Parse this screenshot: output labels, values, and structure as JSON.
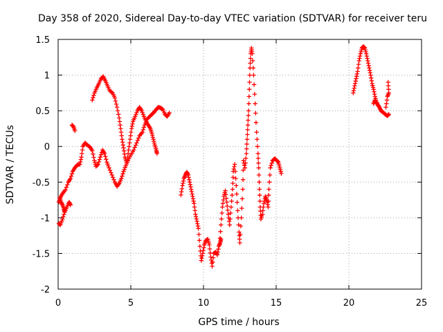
{
  "chart_data": {
    "type": "scatter",
    "title": "Day 358 of 2020, Sidereal Day-to-day VTEC variation (SDTVAR) for receiver teru",
    "xlabel": "GPS time / hours",
    "ylabel": "SDTVAR / TECUs",
    "xlim": [
      0,
      25
    ],
    "ylim": [
      -2,
      1.5
    ],
    "xticks": [
      0,
      5,
      10,
      15,
      20,
      25
    ],
    "yticks": [
      -2,
      -1.5,
      -1,
      -0.5,
      0,
      0.5,
      1,
      1.5
    ],
    "xtick_labels": [
      "0",
      "5",
      "10",
      "15",
      "20",
      "25"
    ],
    "ytick_labels": [
      "-2",
      "-1.5",
      "-1",
      "-0.5",
      "0",
      "0.5",
      "1",
      "1.5"
    ],
    "grid": true,
    "marker": "+",
    "color": "#ff0000",
    "series": [
      {
        "name": "arc1",
        "points": [
          [
            0.05,
            -0.78
          ],
          [
            0.15,
            -0.72
          ],
          [
            0.3,
            -0.66
          ],
          [
            0.5,
            -0.61
          ],
          [
            0.7,
            -0.5
          ],
          [
            0.85,
            -0.45
          ],
          [
            1.0,
            -0.35
          ],
          [
            1.15,
            -0.3
          ],
          [
            1.3,
            -0.26
          ],
          [
            1.5,
            -0.25
          ],
          [
            1.6,
            -0.15
          ],
          [
            1.7,
            0.0
          ],
          [
            1.85,
            0.05
          ],
          [
            2.0,
            0.02
          ],
          [
            2.2,
            -0.01
          ],
          [
            2.35,
            -0.06
          ],
          [
            2.5,
            -0.2
          ],
          [
            2.6,
            -0.28
          ],
          [
            2.75,
            -0.25
          ],
          [
            2.9,
            -0.15
          ],
          [
            3.05,
            -0.05
          ],
          [
            3.2,
            -0.1
          ],
          [
            3.35,
            -0.22
          ],
          [
            3.5,
            -0.3
          ],
          [
            3.7,
            -0.4
          ],
          [
            3.9,
            -0.5
          ],
          [
            4.05,
            -0.56
          ],
          [
            4.2,
            -0.52
          ],
          [
            4.35,
            -0.45
          ],
          [
            4.5,
            -0.35
          ],
          [
            4.65,
            -0.27
          ],
          [
            4.8,
            -0.2
          ],
          [
            5.0,
            -0.12
          ],
          [
            5.2,
            -0.05
          ],
          [
            5.4,
            0.05
          ],
          [
            5.6,
            0.15
          ],
          [
            5.8,
            0.2
          ],
          [
            5.95,
            0.3
          ],
          [
            6.1,
            0.38
          ],
          [
            6.3,
            0.42
          ],
          [
            6.45,
            0.45
          ],
          [
            6.6,
            0.48
          ],
          [
            6.75,
            0.52
          ],
          [
            6.9,
            0.55
          ],
          [
            7.05,
            0.54
          ],
          [
            7.2,
            0.52
          ],
          [
            7.35,
            0.45
          ],
          [
            7.5,
            0.42
          ],
          [
            7.65,
            0.47
          ]
        ]
      },
      {
        "name": "arc2",
        "points": [
          [
            0.05,
            -1.08
          ],
          [
            0.15,
            -1.1
          ],
          [
            0.3,
            -1.02
          ],
          [
            0.45,
            -0.92
          ],
          [
            0.6,
            -0.85
          ],
          [
            0.75,
            -0.78
          ],
          [
            0.85,
            -0.82
          ]
        ]
      },
      {
        "name": "arc3",
        "points": [
          [
            0.1,
            -0.72
          ],
          [
            0.2,
            -0.78
          ],
          [
            0.3,
            -0.82
          ],
          [
            0.4,
            -0.88
          ],
          [
            0.45,
            -0.92
          ]
        ]
      },
      {
        "name": "arc4",
        "points": [
          [
            0.95,
            0.3
          ],
          [
            1.05,
            0.28
          ],
          [
            1.15,
            0.22
          ]
        ]
      },
      {
        "name": "arc5",
        "points": [
          [
            2.35,
            0.65
          ],
          [
            2.5,
            0.75
          ],
          [
            2.65,
            0.82
          ],
          [
            2.8,
            0.88
          ],
          [
            2.95,
            0.95
          ],
          [
            3.1,
            0.98
          ],
          [
            3.25,
            0.92
          ],
          [
            3.4,
            0.85
          ],
          [
            3.55,
            0.78
          ],
          [
            3.75,
            0.75
          ],
          [
            3.9,
            0.68
          ],
          [
            4.05,
            0.55
          ],
          [
            4.2,
            0.4
          ],
          [
            4.3,
            0.25
          ],
          [
            4.4,
            0.1
          ],
          [
            4.5,
            -0.02
          ],
          [
            4.6,
            -0.15
          ],
          [
            4.7,
            -0.22
          ]
        ]
      },
      {
        "name": "arc6",
        "points": [
          [
            4.75,
            -0.2
          ],
          [
            4.85,
            -0.05
          ],
          [
            4.95,
            0.1
          ],
          [
            5.05,
            0.25
          ],
          [
            5.15,
            0.35
          ],
          [
            5.3,
            0.42
          ],
          [
            5.45,
            0.5
          ],
          [
            5.6,
            0.55
          ],
          [
            5.75,
            0.5
          ],
          [
            5.9,
            0.42
          ],
          [
            6.05,
            0.35
          ],
          [
            6.2,
            0.3
          ],
          [
            6.35,
            0.25
          ],
          [
            6.45,
            0.18
          ],
          [
            6.55,
            0.1
          ],
          [
            6.65,
            0.02
          ],
          [
            6.75,
            -0.05
          ],
          [
            6.8,
            -0.1
          ]
        ]
      },
      {
        "name": "arc7",
        "points": [
          [
            8.45,
            -0.68
          ],
          [
            8.55,
            -0.55
          ],
          [
            8.65,
            -0.45
          ],
          [
            8.75,
            -0.4
          ],
          [
            8.85,
            -0.36
          ],
          [
            8.95,
            -0.4
          ],
          [
            9.05,
            -0.5
          ],
          [
            9.15,
            -0.6
          ],
          [
            9.25,
            -0.7
          ],
          [
            9.35,
            -0.8
          ],
          [
            9.45,
            -0.95
          ],
          [
            9.55,
            -1.05
          ],
          [
            9.65,
            -1.15
          ],
          [
            9.75,
            -1.4
          ],
          [
            9.85,
            -1.6
          ],
          [
            9.95,
            -1.5
          ],
          [
            10.05,
            -1.38
          ],
          [
            10.15,
            -1.32
          ],
          [
            10.3,
            -1.3
          ],
          [
            10.4,
            -1.38
          ],
          [
            10.5,
            -1.55
          ],
          [
            10.6,
            -1.68
          ],
          [
            10.7,
            -1.5
          ],
          [
            10.85,
            -1.48
          ],
          [
            10.95,
            -1.52
          ],
          [
            11.05,
            -1.4
          ],
          [
            11.15,
            -1.35
          ],
          [
            11.2,
            -1.3
          ]
        ]
      },
      {
        "name": "arc8",
        "points": [
          [
            11.1,
            -1.38
          ],
          [
            11.2,
            -1.1
          ],
          [
            11.3,
            -0.85
          ],
          [
            11.4,
            -0.7
          ],
          [
            11.5,
            -0.62
          ],
          [
            11.6,
            -0.78
          ],
          [
            11.7,
            -0.95
          ],
          [
            11.8,
            -1.1
          ],
          [
            11.9,
            -0.85
          ],
          [
            12.0,
            -0.6
          ],
          [
            12.05,
            -0.35
          ],
          [
            12.15,
            -0.25
          ],
          [
            12.25,
            -0.55
          ],
          [
            12.35,
            -0.9
          ],
          [
            12.45,
            -1.2
          ],
          [
            12.5,
            -1.35
          ],
          [
            12.6,
            -1.0
          ],
          [
            12.7,
            -0.6
          ],
          [
            12.75,
            -0.2
          ],
          [
            12.85,
            -0.3
          ],
          [
            12.95,
            -0.1
          ],
          [
            13.0,
            0.1
          ],
          [
            13.05,
            0.3
          ],
          [
            13.1,
            0.5
          ],
          [
            13.15,
            0.8
          ],
          [
            13.2,
            1.1
          ],
          [
            13.25,
            1.3
          ],
          [
            13.3,
            1.38
          ],
          [
            13.35,
            1.3
          ],
          [
            13.45,
            1.0
          ],
          [
            13.55,
            0.6
          ],
          [
            13.65,
            0.2
          ],
          [
            13.75,
            -0.1
          ],
          [
            13.8,
            -0.3
          ],
          [
            13.85,
            -0.6
          ],
          [
            13.9,
            -0.85
          ],
          [
            13.95,
            -1.02
          ],
          [
            14.05,
            -0.95
          ],
          [
            14.15,
            -0.8
          ],
          [
            14.25,
            -0.7
          ],
          [
            14.35,
            -0.75
          ],
          [
            14.45,
            -0.85
          ],
          [
            14.5,
            -0.6
          ],
          [
            14.6,
            -0.3
          ],
          [
            14.75,
            -0.2
          ],
          [
            14.9,
            -0.17
          ],
          [
            15.05,
            -0.2
          ],
          [
            15.15,
            -0.22
          ],
          [
            15.25,
            -0.3
          ],
          [
            15.35,
            -0.38
          ]
        ]
      },
      {
        "name": "arc9",
        "points": [
          [
            20.3,
            0.75
          ],
          [
            20.4,
            0.85
          ],
          [
            20.5,
            0.95
          ],
          [
            20.6,
            1.05
          ],
          [
            20.7,
            1.2
          ],
          [
            20.8,
            1.3
          ],
          [
            20.9,
            1.38
          ],
          [
            21.0,
            1.4
          ],
          [
            21.1,
            1.38
          ],
          [
            21.2,
            1.3
          ],
          [
            21.3,
            1.2
          ],
          [
            21.4,
            1.1
          ],
          [
            21.5,
            1.0
          ],
          [
            21.6,
            0.88
          ],
          [
            21.7,
            0.8
          ],
          [
            21.8,
            0.7
          ],
          [
            21.9,
            0.62
          ],
          [
            22.0,
            0.58
          ],
          [
            22.1,
            0.55
          ],
          [
            22.2,
            0.5
          ],
          [
            22.35,
            0.48
          ],
          [
            22.5,
            0.45
          ],
          [
            22.65,
            0.43
          ],
          [
            22.75,
            0.45
          ]
        ]
      },
      {
        "name": "arc10",
        "points": [
          [
            21.7,
            0.6
          ],
          [
            21.8,
            0.65
          ],
          [
            21.9,
            0.6
          ]
        ]
      },
      {
        "name": "arc11",
        "points": [
          [
            22.55,
            0.55
          ],
          [
            22.65,
            0.7
          ],
          [
            22.75,
            0.75
          ],
          [
            22.7,
            0.9
          ]
        ]
      }
    ]
  }
}
